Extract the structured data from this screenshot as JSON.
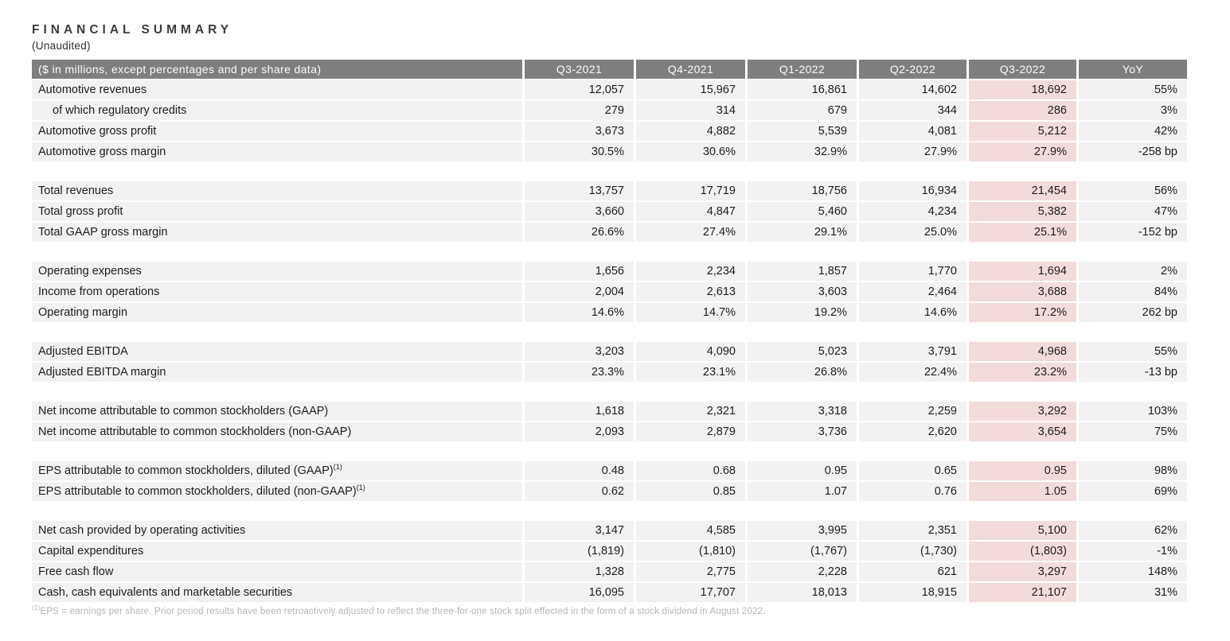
{
  "title": "FINANCIAL SUMMARY",
  "subtitle": "(Unaudited)",
  "table": {
    "header": {
      "label": "($ in millions, except percentages and per share data)",
      "columns": [
        "Q3-2021",
        "Q4-2021",
        "Q1-2022",
        "Q2-2022",
        "Q3-2022",
        "YoY"
      ]
    },
    "highlight_column": "Q3-2022",
    "highlight_column_index": 4,
    "sections": [
      {
        "rows": [
          {
            "label": "Automotive revenues",
            "values": [
              "12,057",
              "15,967",
              "16,861",
              "14,602",
              "18,692",
              "55%"
            ]
          },
          {
            "label": "of which regulatory credits",
            "indent": true,
            "values": [
              "279",
              "314",
              "679",
              "344",
              "286",
              "3%"
            ]
          },
          {
            "label": "Automotive gross profit",
            "values": [
              "3,673",
              "4,882",
              "5,539",
              "4,081",
              "5,212",
              "42%"
            ]
          },
          {
            "label": "Automotive gross margin",
            "values": [
              "30.5%",
              "30.6%",
              "32.9%",
              "27.9%",
              "27.9%",
              "-258 bp"
            ]
          }
        ]
      },
      {
        "rows": [
          {
            "label": "Total revenues",
            "values": [
              "13,757",
              "17,719",
              "18,756",
              "16,934",
              "21,454",
              "56%"
            ]
          },
          {
            "label": "Total gross profit",
            "values": [
              "3,660",
              "4,847",
              "5,460",
              "4,234",
              "5,382",
              "47%"
            ]
          },
          {
            "label": "Total GAAP gross margin",
            "values": [
              "26.6%",
              "27.4%",
              "29.1%",
              "25.0%",
              "25.1%",
              "-152 bp"
            ]
          }
        ]
      },
      {
        "rows": [
          {
            "label": "Operating expenses",
            "values": [
              "1,656",
              "2,234",
              "1,857",
              "1,770",
              "1,694",
              "2%"
            ]
          },
          {
            "label": "Income from operations",
            "values": [
              "2,004",
              "2,613",
              "3,603",
              "2,464",
              "3,688",
              "84%"
            ]
          },
          {
            "label": "Operating margin",
            "values": [
              "14.6%",
              "14.7%",
              "19.2%",
              "14.6%",
              "17.2%",
              "262 bp"
            ]
          }
        ]
      },
      {
        "rows": [
          {
            "label": "Adjusted EBITDA",
            "values": [
              "3,203",
              "4,090",
              "5,023",
              "3,791",
              "4,968",
              "55%"
            ]
          },
          {
            "label": "Adjusted EBITDA margin",
            "values": [
              "23.3%",
              "23.1%",
              "26.8%",
              "22.4%",
              "23.2%",
              "-13 bp"
            ]
          }
        ]
      },
      {
        "rows": [
          {
            "label": "Net income attributable to common stockholders (GAAP)",
            "values": [
              "1,618",
              "2,321",
              "3,318",
              "2,259",
              "3,292",
              "103%"
            ]
          },
          {
            "label": "Net income attributable to common stockholders (non-GAAP)",
            "values": [
              "2,093",
              "2,879",
              "3,736",
              "2,620",
              "3,654",
              "75%"
            ]
          }
        ]
      },
      {
        "rows": [
          {
            "label": "EPS attributable to common stockholders, diluted (GAAP)",
            "sup": "(1)",
            "values": [
              "0.48",
              "0.68",
              "0.95",
              "0.65",
              "0.95",
              "98%"
            ]
          },
          {
            "label": "EPS attributable to common stockholders, diluted (non-GAAP)",
            "sup": "(1)",
            "values": [
              "0.62",
              "0.85",
              "1.07",
              "0.76",
              "1.05",
              "69%"
            ]
          }
        ]
      },
      {
        "rows": [
          {
            "label": "Net cash provided by operating activities",
            "values": [
              "3,147",
              "4,585",
              "3,995",
              "2,351",
              "5,100",
              "62%"
            ]
          },
          {
            "label": "Capital expenditures",
            "values": [
              "(1,819)",
              "(1,810)",
              "(1,767)",
              "(1,730)",
              "(1,803)",
              "-1%"
            ]
          },
          {
            "label": "Free cash flow",
            "values": [
              "1,328",
              "2,775",
              "2,228",
              "621",
              "3,297",
              "148%"
            ]
          },
          {
            "label": "Cash, cash equivalents and marketable securities",
            "values": [
              "16,095",
              "17,707",
              "18,013",
              "18,915",
              "21,107",
              "31%"
            ]
          }
        ]
      }
    ]
  },
  "footnote": {
    "sup": "(1)",
    "text": "EPS = earnings per share. Prior period results have been retroactively adjusted to reflect the three-for-one stock split effected in the form of a stock dividend in August 2022."
  },
  "colors": {
    "header_bg": "#7f7f7f",
    "header_text": "#fbfbfb",
    "row_bg": "#f2f2f2",
    "highlight_bg": "#f2dcdb",
    "body_text": "#1d1d1d",
    "title_text": "#3d3d3d",
    "footnote_text": "#b5b5b5"
  }
}
